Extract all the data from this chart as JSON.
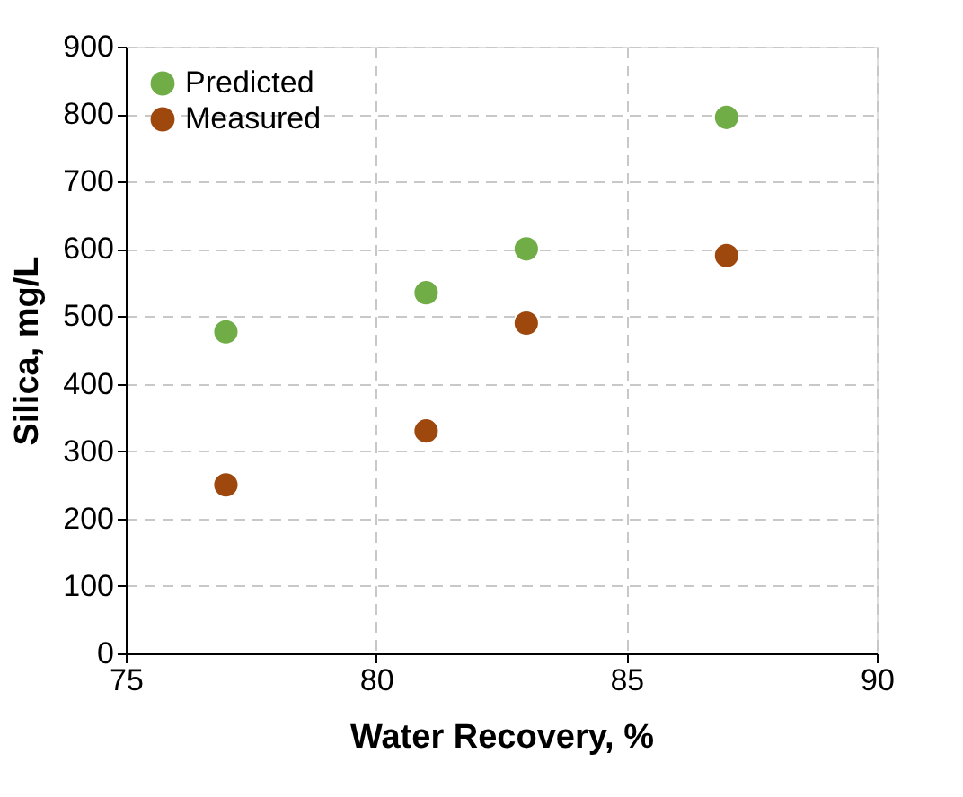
{
  "chart_data": {
    "type": "scatter",
    "xlabel": "Water Recovery, %",
    "ylabel": "Silica, mg/L",
    "series": [
      {
        "name": "Predicted",
        "color": "#70ad47",
        "x": [
          77,
          81,
          83,
          87
        ],
        "values": [
          477,
          535,
          600,
          795
        ]
      },
      {
        "name": "Measured",
        "color": "#9e480e",
        "x": [
          77,
          81,
          83,
          87
        ],
        "values": [
          250,
          330,
          490,
          590
        ]
      }
    ],
    "xlim": [
      75,
      90
    ],
    "xticks": [
      75,
      80,
      85,
      90
    ],
    "ylim": [
      0,
      900
    ],
    "yticks": [
      0,
      100,
      200,
      300,
      400,
      500,
      600,
      700,
      800,
      900
    ],
    "grid": true,
    "legend": "top left",
    "marker": "circle"
  }
}
